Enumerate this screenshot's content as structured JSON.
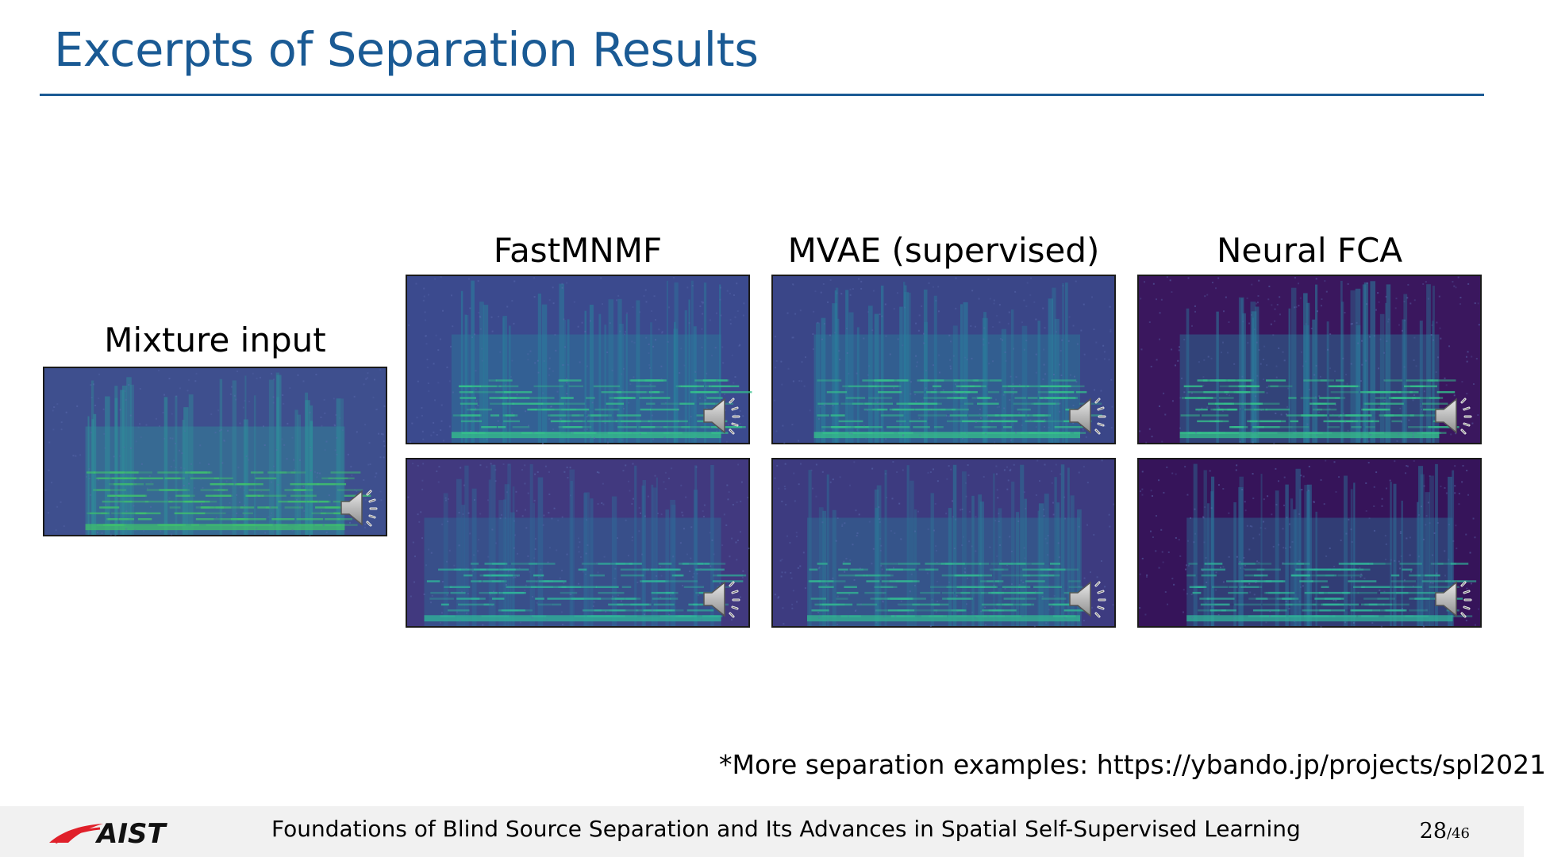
{
  "slide": {
    "title": "Excerpts of Separation Results",
    "columns": {
      "mixture": "Mixture input",
      "fastmnmf": "FastMNMF",
      "mvae": "MVAE (supervised)",
      "neural_fca": "Neural FCA"
    },
    "note": "*More separation examples: https://ybando.jp/projects/spl2021"
  },
  "footer": {
    "logo_text": "AIST",
    "text": "Foundations of Blind Source Separation and Its Advances in Spatial Self-Supervised Learning",
    "page_current": "28",
    "page_total": "/46"
  },
  "colors": {
    "title": "#1a5a94",
    "spectrogram_bg": "#3b4c8c",
    "spectrogram_bg_dark": "#2f1a5a",
    "spectrogram_hi": "#33c08a",
    "logo_red": "#e0202a"
  },
  "icons": [
    "speaker-icon",
    "aist-logo"
  ]
}
